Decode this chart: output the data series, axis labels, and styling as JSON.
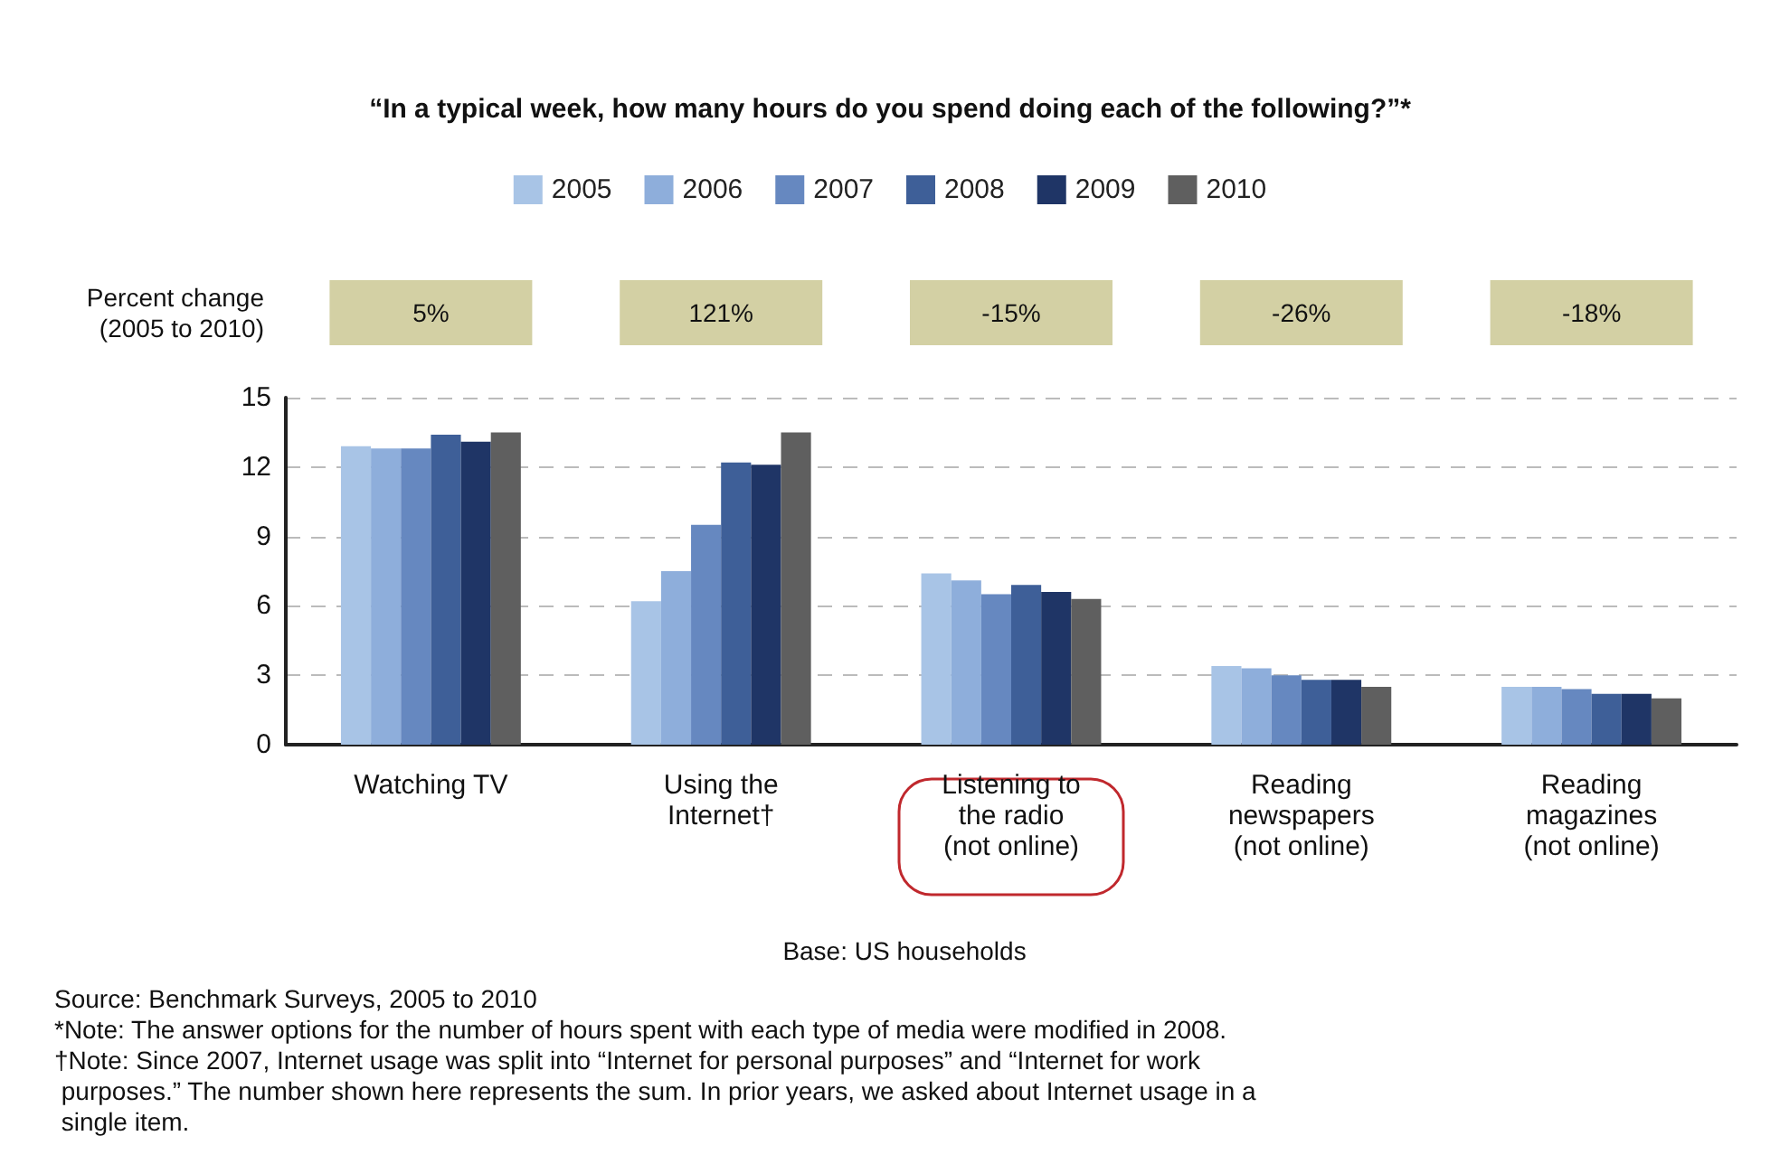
{
  "chart_data": {
    "type": "bar",
    "title": "“In a typical week, how many hours do you spend doing each of the following?”*",
    "categories": [
      "Watching TV",
      "Using the\nInternet†",
      "Listening to\nthe radio\n(not online)",
      "Reading\nnewspapers\n(not online)",
      "Reading\nmagazines\n(not online)"
    ],
    "series": [
      {
        "name": "2005",
        "color": "#a8c4e6",
        "values": [
          12.9,
          6.2,
          7.4,
          3.4,
          2.5
        ]
      },
      {
        "name": "2006",
        "color": "#8eaedb",
        "values": [
          12.8,
          7.5,
          7.1,
          3.3,
          2.5
        ]
      },
      {
        "name": "2007",
        "color": "#6688c0",
        "values": [
          12.8,
          9.5,
          6.5,
          3.0,
          2.4
        ]
      },
      {
        "name": "2008",
        "color": "#3e5f98",
        "values": [
          13.4,
          12.2,
          6.9,
          2.8,
          2.2
        ]
      },
      {
        "name": "2009",
        "color": "#1f3566",
        "values": [
          13.1,
          12.1,
          6.6,
          2.8,
          2.2
        ]
      },
      {
        "name": "2010",
        "color": "#5f5f5f",
        "values": [
          13.5,
          13.5,
          6.3,
          2.5,
          2.0
        ]
      }
    ],
    "ylim": [
      0,
      15
    ],
    "yticks": [
      0,
      3,
      6,
      9,
      12,
      15
    ],
    "grid": "y",
    "legend": "top",
    "annotations": [
      "Percent change\n(2005 to 2010)",
      "5%",
      "121%",
      "-15%",
      "-26%",
      "-18%",
      "Base: US households",
      "Source: Benchmark Surveys, 2005 to 2010",
      "*Note: The answer options for the number of hours spent with each type of media were modified in 2008.",
      "†Note: Since 2007, Internet usage was split into “Internet for personal purposes” and “Internet for work\n purposes.” The number shown here represents the sum. In prior years, we asked about Internet usage in a\n single item."
    ]
  }
}
